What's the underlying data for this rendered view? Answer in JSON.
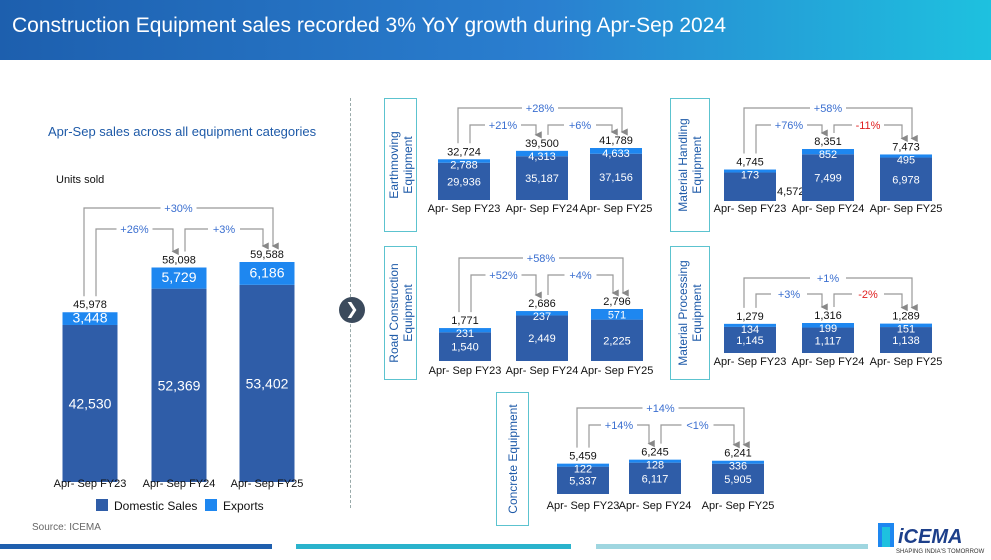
{
  "header": {
    "title": "Construction Equipment sales recorded 3% YoY growth during Apr-Sep 2024"
  },
  "left": {
    "subtitle": "Apr-Sep sales across all equipment categories",
    "units": "Units sold"
  },
  "source": "Source: ICEMA",
  "logo": {
    "name": "iCEMA",
    "tagline": "SHAPING INDIA'S TOMORROW"
  },
  "colors": {
    "domestic": "#2f5da8",
    "exports": "#1e87f0",
    "header_start": "#1d5fae",
    "header_end": "#1ec1df",
    "negative": "#e02020",
    "growth": "#3b6fd0"
  },
  "legend": [
    {
      "label": "Domestic Sales",
      "color": "#2f5da8"
    },
    {
      "label": "Exports",
      "color": "#1e87f0"
    }
  ],
  "chart_data": [
    {
      "type": "bar",
      "stacked": true,
      "title": "",
      "xlabel": "",
      "ylabel": "Units sold",
      "categories": [
        "Apr- Sep FY23",
        "Apr- Sep FY24",
        "Apr- Sep FY25"
      ],
      "series": [
        {
          "name": "Domestic Sales",
          "values": [
            42530,
            52369,
            53402
          ]
        },
        {
          "name": "Exports",
          "values": [
            3448,
            5729,
            6186
          ]
        }
      ],
      "totals": [
        45978,
        58098,
        59588
      ],
      "labels": {
        "domestic": [
          "42,530",
          "52,369",
          "53,402"
        ],
        "exports": [
          "3,448",
          "5,729",
          "6,186"
        ],
        "totals": [
          "45,978",
          "58,098",
          "59,588"
        ]
      },
      "growth": {
        "fy24_vs_fy23": "+26%",
        "fy25_vs_fy24": "+3%",
        "fy25_vs_fy23": "+30%"
      }
    },
    {
      "type": "bar",
      "stacked": true,
      "title": "Earthmoving Equipment",
      "categories": [
        "Apr- Sep FY23",
        "Apr- Sep FY24",
        "Apr- Sep FY25"
      ],
      "series": [
        {
          "name": "Domestic Sales",
          "values": [
            29936,
            35187,
            37156
          ]
        },
        {
          "name": "Exports",
          "values": [
            2788,
            4313,
            4633
          ]
        }
      ],
      "totals": [
        32724,
        39500,
        41789
      ],
      "labels": {
        "domestic": [
          "29,936",
          "35,187",
          "37,156"
        ],
        "exports": [
          "2,788",
          "4,313",
          "4,633"
        ],
        "totals": [
          "32,724",
          "39,500",
          "41,789"
        ]
      },
      "growth": {
        "fy24_vs_fy23": "+21%",
        "fy25_vs_fy24": "+6%",
        "fy25_vs_fy23": "+28%"
      }
    },
    {
      "type": "bar",
      "stacked": true,
      "title": "Material Handling Equipment",
      "categories": [
        "Apr- Sep FY23",
        "Apr- Sep FY24",
        "Apr- Sep FY25"
      ],
      "series": [
        {
          "name": "Domestic Sales",
          "values": [
            4572,
            7499,
            6978
          ]
        },
        {
          "name": "Exports",
          "values": [
            173,
            852,
            495
          ]
        }
      ],
      "totals": [
        4745,
        8351,
        7473
      ],
      "labels": {
        "domestic": [
          "4,572",
          "7,499",
          "6,978"
        ],
        "exports": [
          "173",
          "852",
          "495"
        ],
        "totals": [
          "4,745",
          "8,351",
          "7,473"
        ]
      },
      "growth": {
        "fy24_vs_fy23": "+76%",
        "fy25_vs_fy24": "-11%",
        "fy25_vs_fy23": "+58%"
      }
    },
    {
      "type": "bar",
      "stacked": true,
      "title": "Road Construction Equipment",
      "categories": [
        "Apr- Sep FY23",
        "Apr- Sep FY24",
        "Apr- Sep FY25"
      ],
      "series": [
        {
          "name": "Domestic Sales",
          "values": [
            1540,
            2449,
            2225
          ]
        },
        {
          "name": "Exports",
          "values": [
            231,
            237,
            571
          ]
        }
      ],
      "totals": [
        1771,
        2686,
        2796
      ],
      "labels": {
        "domestic": [
          "1,540",
          "2,449",
          "2,225"
        ],
        "exports": [
          "231",
          "237",
          "571"
        ],
        "totals": [
          "1,771",
          "2,686",
          "2,796"
        ]
      },
      "growth": {
        "fy24_vs_fy23": "+52%",
        "fy25_vs_fy24": "+4%",
        "fy25_vs_fy23": "+58%"
      }
    },
    {
      "type": "bar",
      "stacked": true,
      "title": "Material Processing Equipment",
      "categories": [
        "Apr- Sep FY23",
        "Apr- Sep FY24",
        "Apr- Sep FY25"
      ],
      "series": [
        {
          "name": "Domestic Sales",
          "values": [
            1145,
            1117,
            1138
          ]
        },
        {
          "name": "Exports",
          "values": [
            134,
            199,
            151
          ]
        }
      ],
      "totals": [
        1279,
        1316,
        1289
      ],
      "labels": {
        "domestic": [
          "1,145",
          "1,117",
          "1,138"
        ],
        "exports": [
          "134",
          "199",
          "151"
        ],
        "totals": [
          "1,279",
          "1,316",
          "1,289"
        ]
      },
      "growth": {
        "fy24_vs_fy23": "+3%",
        "fy25_vs_fy24": "-2%",
        "fy25_vs_fy23": "+1%"
      }
    },
    {
      "type": "bar",
      "stacked": true,
      "title": "Concrete Equipment",
      "categories": [
        "Apr- Sep FY23",
        "Apr- Sep FY24",
        "Apr- Sep FY25"
      ],
      "series": [
        {
          "name": "Domestic Sales",
          "values": [
            5337,
            6117,
            5905
          ]
        },
        {
          "name": "Exports",
          "values": [
            122,
            128,
            336
          ]
        }
      ],
      "totals": [
        5459,
        6245,
        6241
      ],
      "labels": {
        "domestic": [
          "5,337",
          "6,117",
          "5,905"
        ],
        "exports": [
          "122",
          "128",
          "336"
        ],
        "totals": [
          "5,459",
          "6,245",
          "6,241"
        ]
      },
      "growth": {
        "fy24_vs_fy23": "+14%",
        "fy25_vs_fy24": "<1%",
        "fy25_vs_fy23": "+14%"
      }
    }
  ]
}
